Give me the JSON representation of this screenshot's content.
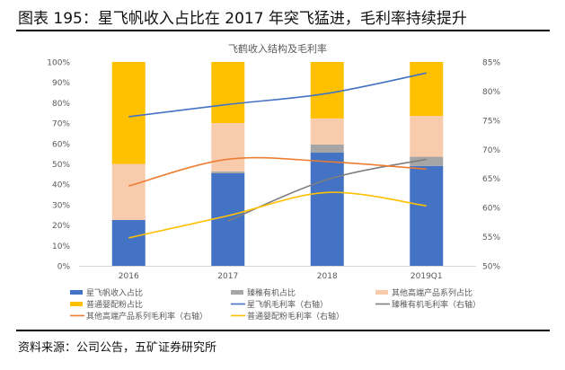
{
  "header": {
    "title": "图表 195：星飞帆收入占比在 2017 年突飞猛进，毛利率持续提升"
  },
  "footer": {
    "source": "资料来源：公司公告，五矿证券研究所"
  },
  "chart_data": {
    "type": "bar",
    "stacked": true,
    "title": "飞鹤收入结构及毛利率",
    "categories": [
      "2016",
      "2017",
      "2018",
      "2019Q1"
    ],
    "y_left": {
      "ylim": [
        0,
        100
      ],
      "ticks": [
        "0%",
        "10%",
        "20%",
        "30%",
        "40%",
        "50%",
        "60%",
        "70%",
        "80%",
        "90%",
        "100%"
      ]
    },
    "y_right": {
      "ylim": [
        50,
        85
      ],
      "ticks": [
        "50%",
        "55%",
        "60%",
        "65%",
        "70%",
        "75%",
        "80%",
        "85%"
      ]
    },
    "grid": false,
    "legend_placement": "bottom",
    "bar_series": [
      {
        "name": "星飞帆收入占比",
        "color": "#4472C4",
        "values": [
          22.5,
          45.4,
          55.5,
          49.0
        ]
      },
      {
        "name": "臻稚有机占比",
        "color": "#A5A5A5",
        "values": [
          0,
          0.9,
          4.0,
          4.5
        ]
      },
      {
        "name": "其他高端产品系列占比",
        "color": "#F8CBAD",
        "values": [
          27.5,
          23.7,
          12.8,
          20.0
        ]
      },
      {
        "name": "普通婴配粉占比",
        "color": "#FFC000",
        "values": [
          50.0,
          30.0,
          27.7,
          26.5
        ]
      }
    ],
    "line_series": [
      {
        "name": "星飞帆毛利率（右轴）",
        "color": "#4472C4",
        "values": [
          75.6,
          77.7,
          79.6,
          83.1
        ]
      },
      {
        "name": "臻稚有机毛利率（右轴）",
        "color": "#7F7F7F",
        "values": [
          null,
          57.7,
          64.8,
          68.3
        ]
      },
      {
        "name": "其他高端产品系列毛利率（右轴）",
        "color": "#ED7D31",
        "values": [
          63.7,
          68.3,
          67.9,
          66.6
        ]
      },
      {
        "name": "普通婴配粉毛利率（右轴）",
        "color": "#FFC000",
        "values": [
          54.8,
          58.6,
          62.6,
          60.3
        ]
      }
    ],
    "legend": [
      "星飞帆收入占比",
      "臻稚有机占比",
      "其他高端产品系列占比",
      "普通婴配粉占比",
      "星飞帆毛利率（右轴）",
      "臻稚有机毛利率（右轴）",
      "其他高端产品系列毛利率（右轴）",
      "普通婴配粉毛利率（右轴）"
    ]
  }
}
